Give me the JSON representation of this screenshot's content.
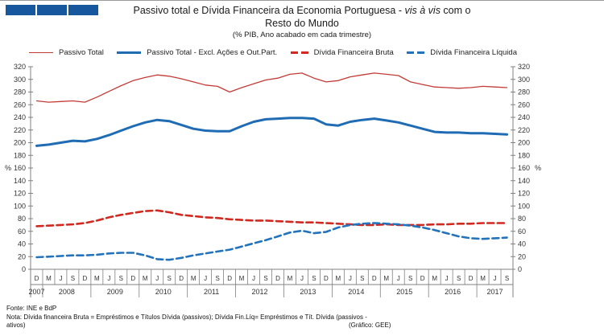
{
  "logo": {
    "color": "#17579E",
    "square_count": 3
  },
  "header": {
    "title_prefix": "Passivo total e Dívida Financeira da Economia Portuguesa - ",
    "title_italic": "vis à vis",
    "title_suffix": " com o",
    "title_line2": "Resto do Mundo",
    "subtitle": "(% PIB, Ano acabado em cada trimestre)"
  },
  "chart_data": {
    "type": "line",
    "title": "Passivo total e Dívida Financeira da Economia Portuguesa - vis à vis com o Resto do Mundo",
    "subtitle": "(% PIB, Ano acabado em cada trimestre)",
    "ylabel": "%",
    "ylim": [
      0,
      320
    ],
    "ytick_step": 20,
    "grid": false,
    "legend_position": "top",
    "x_axis_note": "Quarters D(Dec), M(Mar), J(Jun), S(Sep) from Dec-2007 to Sep-2017",
    "x_quarters": [
      "D",
      "M",
      "J",
      "S",
      "D",
      "M",
      "J",
      "S",
      "D",
      "M",
      "J",
      "S",
      "D",
      "M",
      "J",
      "S",
      "D",
      "M",
      "J",
      "S",
      "D",
      "M",
      "J",
      "S",
      "D",
      "M",
      "J",
      "S",
      "D",
      "M",
      "J",
      "S",
      "D",
      "M",
      "J",
      "S",
      "D",
      "M",
      "J",
      "S"
    ],
    "x_years": [
      {
        "label": "2007",
        "span": 1
      },
      {
        "label": "2008",
        "span": 4
      },
      {
        "label": "2009",
        "span": 4
      },
      {
        "label": "2010",
        "span": 4
      },
      {
        "label": "2011",
        "span": 4
      },
      {
        "label": "2012",
        "span": 4
      },
      {
        "label": "2013",
        "span": 4
      },
      {
        "label": "2014",
        "span": 4
      },
      {
        "label": "2015",
        "span": 4
      },
      {
        "label": "2016",
        "span": 4
      },
      {
        "label": "2017",
        "span": 3
      }
    ],
    "series": [
      {
        "name": "Passivo Total",
        "style": "solid",
        "width": 1.3,
        "color": "#C23B36",
        "values": [
          266,
          264,
          265,
          266,
          264,
          272,
          281,
          290,
          298,
          303,
          307,
          305,
          301,
          296,
          291,
          289,
          280,
          287,
          293,
          299,
          302,
          308,
          310,
          302,
          296,
          298,
          304,
          307,
          310,
          308,
          306,
          296,
          292,
          288,
          287,
          286,
          287,
          289,
          288,
          287
        ]
      },
      {
        "name": "Passivo Total - Excl. Ações e Out.Part.",
        "style": "solid",
        "width": 3,
        "color": "#1F6CB5",
        "values": [
          195,
          197,
          200,
          203,
          202,
          206,
          212,
          219,
          226,
          232,
          236,
          234,
          228,
          222,
          219,
          218,
          218,
          226,
          233,
          237,
          238,
          239,
          239,
          238,
          229,
          227,
          233,
          236,
          238,
          235,
          232,
          227,
          222,
          217,
          216,
          216,
          215,
          215,
          214,
          213
        ]
      },
      {
        "name": "Dívida Financeira Bruta",
        "style": "dashed",
        "width": 2.6,
        "color": "#D02920",
        "values": [
          68,
          69,
          70,
          71,
          73,
          77,
          82,
          86,
          89,
          92,
          93,
          90,
          86,
          84,
          82,
          81,
          79,
          78,
          77,
          77,
          76,
          75,
          74,
          74,
          73,
          72,
          71,
          70,
          70,
          71,
          70,
          70,
          70,
          71,
          71,
          72,
          72,
          73,
          73,
          73
        ]
      },
      {
        "name": "Dívida Financeira Líquida",
        "style": "dashed",
        "width": 2.6,
        "color": "#2273BC",
        "values": [
          19,
          20,
          21,
          22,
          22,
          23,
          25,
          26,
          26,
          22,
          16,
          15,
          18,
          22,
          25,
          28,
          31,
          36,
          41,
          46,
          52,
          58,
          61,
          57,
          59,
          66,
          70,
          72,
          73,
          72,
          71,
          69,
          66,
          62,
          57,
          52,
          49,
          48,
          49,
          50
        ]
      }
    ]
  },
  "footer": {
    "fonte": "Fonte: INE e BdP",
    "nota_line1": "Nota: Dívida  financeira  Bruta = Empréstimos e Títulos  Dívida  (passivos);  Dívida  Fin.Líq= Empréstimos e Tít.  Dívida  (passivos -",
    "nota_line2": "ativos)",
    "grafico": "(Gráfico: GEE)"
  }
}
